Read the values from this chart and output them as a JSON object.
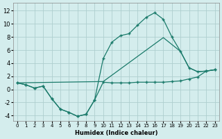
{
  "title": "",
  "xlabel": "Humidex (Indice chaleur)",
  "ylabel": "",
  "background_color": "#d4eded",
  "grid_color": "#aecfcf",
  "line_color": "#1a7a6a",
  "xlim": [
    -0.5,
    23.5
  ],
  "ylim": [
    -4.8,
    13.2
  ],
  "xticks": [
    0,
    1,
    2,
    3,
    4,
    5,
    6,
    7,
    8,
    9,
    10,
    11,
    12,
    13,
    14,
    15,
    16,
    17,
    18,
    19,
    20,
    21,
    22,
    23
  ],
  "yticks": [
    -4,
    -2,
    0,
    2,
    4,
    6,
    8,
    10,
    12
  ],
  "curve1_x": [
    0,
    1,
    2,
    3,
    4,
    5,
    6,
    7,
    8,
    9,
    10,
    11,
    12,
    13,
    14,
    15,
    16,
    17,
    18,
    19,
    20,
    21,
    22,
    23
  ],
  "curve1_y": [
    1.0,
    0.7,
    0.2,
    0.5,
    -1.4,
    -3.0,
    -3.5,
    -4.1,
    -3.8,
    -1.6,
    1.1,
    1.0,
    1.0,
    1.0,
    1.1,
    1.1,
    1.1,
    1.1,
    1.2,
    1.3,
    1.6,
    1.9,
    2.8,
    3.0
  ],
  "curve2_x": [
    0,
    1,
    2,
    3,
    4,
    5,
    6,
    7,
    8,
    9,
    10,
    11,
    12,
    13,
    14,
    15,
    16,
    17,
    18,
    19,
    20,
    21,
    22,
    23
  ],
  "curve2_y": [
    1.0,
    0.7,
    0.2,
    0.5,
    -1.4,
    -3.0,
    -3.5,
    -4.1,
    -3.8,
    -1.6,
    4.7,
    7.2,
    8.2,
    8.5,
    9.8,
    11.0,
    11.7,
    10.7,
    8.0,
    5.8,
    3.3,
    2.7,
    2.8,
    3.0
  ],
  "curve3_x": [
    0,
    10,
    17,
    19,
    20,
    21,
    22,
    23
  ],
  "curve3_y": [
    1.0,
    1.2,
    7.9,
    5.8,
    3.3,
    2.7,
    2.8,
    3.0
  ],
  "marker": "+"
}
